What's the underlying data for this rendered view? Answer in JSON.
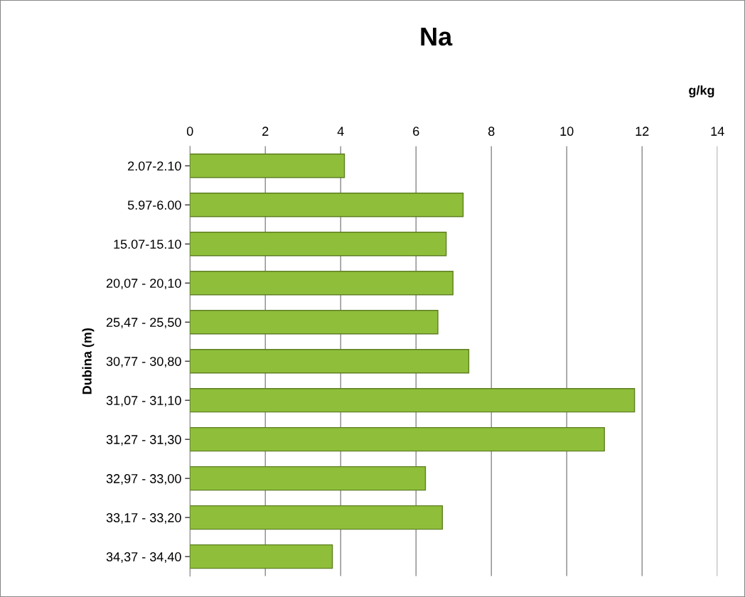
{
  "chart_data": {
    "type": "bar",
    "orientation": "horizontal",
    "title": "Na",
    "xlabel": "g/kg",
    "ylabel": "Dubina (m)",
    "categories": [
      "2.07-2.10",
      "5.97-6.00",
      "15.07-15.10",
      "20,07 - 20,10",
      "25,47 - 25,50",
      "30,77 - 30,80",
      "31,07 - 31,10",
      "31,27 - 31,30",
      "32,97 - 33,00",
      "33,17 - 33,20",
      "34,37 - 34,40"
    ],
    "values": [
      4.1,
      7.25,
      6.8,
      6.98,
      6.58,
      7.4,
      11.8,
      11.0,
      6.25,
      6.7,
      3.78
    ],
    "color": "#8fbf3a",
    "xlim": [
      0,
      14
    ],
    "xticks": [
      0,
      2,
      4,
      6,
      8,
      10,
      12,
      14
    ],
    "grid": "x",
    "legend": false
  }
}
